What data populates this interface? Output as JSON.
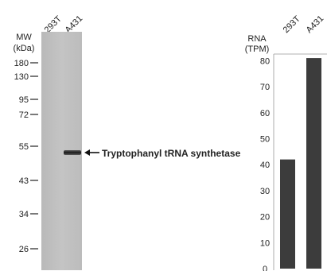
{
  "western_blot": {
    "mw_label_line1": "MW",
    "mw_label_line2": "(kDa)",
    "lane_labels": [
      "293T",
      "A431"
    ],
    "mw_markers": [
      "180",
      "130",
      "95",
      "72",
      "55",
      "43",
      "34",
      "26"
    ],
    "band_annotation": "Tryptophanyl tRNA synthetase",
    "band_lane": "A431",
    "band_mw_kda": 54
  },
  "chart_data": {
    "type": "bar",
    "ylabel_line1": "RNA",
    "ylabel_line2": "(TPM)",
    "categories": [
      "293T",
      "A431"
    ],
    "values": [
      42,
      81
    ],
    "ylim": [
      0,
      85
    ],
    "yticks": [
      0,
      10,
      20,
      30,
      40,
      50,
      60,
      70,
      80
    ],
    "bar_color": "#3c3c3c",
    "grid": false
  }
}
